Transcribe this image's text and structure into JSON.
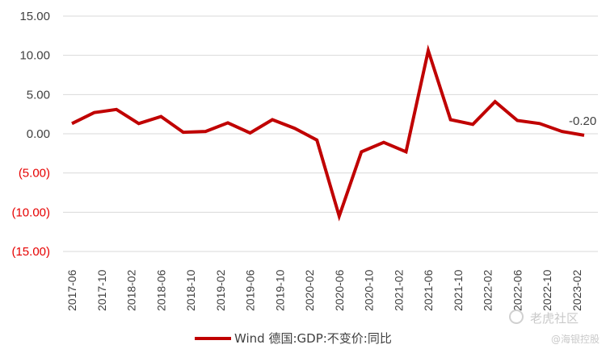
{
  "chart_data": {
    "type": "line",
    "title": "",
    "xlabel": "",
    "ylabel": "",
    "ylim": [
      -15,
      15
    ],
    "y_ticks": [
      15,
      10,
      5,
      0,
      -5,
      -10,
      -15
    ],
    "y_tick_labels": [
      "15.00",
      "10.00",
      "5.00",
      "0.00",
      "(5.00)",
      "(10.00)",
      "(15.00)"
    ],
    "colors": {
      "line": "#c00000",
      "negative_tick": "#e60000",
      "positive_tick": "#404040",
      "grid": "#d9d9d9"
    },
    "x_tick_labels": [
      "2017-06",
      "2017-10",
      "2018-02",
      "2018-06",
      "2018-10",
      "2019-02",
      "2019-06",
      "2019-10",
      "2020-02",
      "2020-06",
      "2020-10",
      "2021-02",
      "2021-06",
      "2021-10",
      "2022-02",
      "2022-06",
      "2022-10",
      "2023-02"
    ],
    "x": [
      "2017-06",
      "2017-09",
      "2017-12",
      "2018-03",
      "2018-06",
      "2018-09",
      "2018-12",
      "2019-03",
      "2019-06",
      "2019-09",
      "2019-12",
      "2020-03",
      "2020-06",
      "2020-09",
      "2020-12",
      "2021-03",
      "2021-06",
      "2021-09",
      "2021-12",
      "2022-03",
      "2022-06",
      "2022-09",
      "2022-12",
      "2023-03"
    ],
    "series": [
      {
        "name": "Wind 德国:GDP:不变价:同比",
        "values": [
          1.3,
          2.7,
          3.1,
          1.3,
          2.2,
          0.2,
          0.3,
          1.4,
          0.1,
          1.8,
          0.7,
          -0.8,
          -10.5,
          -2.3,
          -1.1,
          -2.3,
          10.6,
          1.8,
          1.2,
          4.1,
          1.7,
          1.3,
          0.3,
          -0.2
        ]
      }
    ],
    "annotations": [
      {
        "text": "-0.20"
      }
    ],
    "grid": "horizontal",
    "legend": "bottom"
  },
  "watermark": {
    "line1": "老虎社区",
    "line2": "@海银控股"
  }
}
